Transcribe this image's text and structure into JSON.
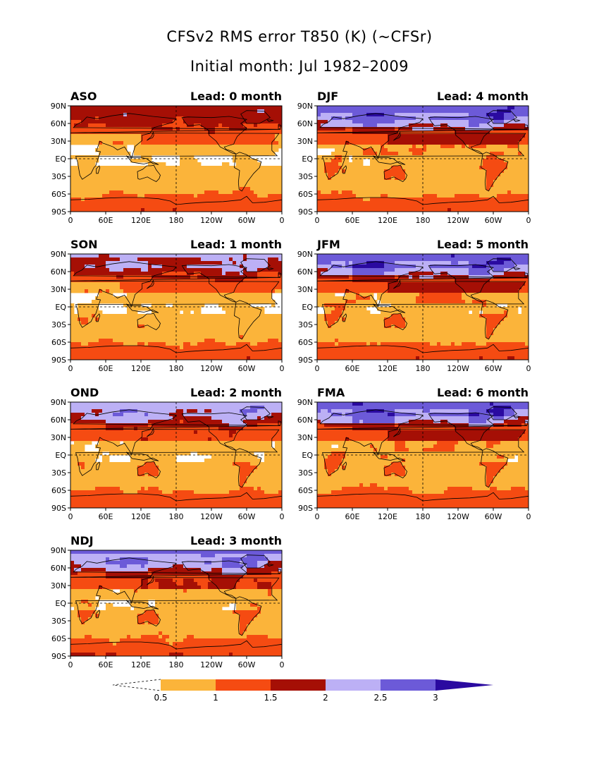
{
  "title": "CFSv2 RMS error T850 (K) (~CFSr)",
  "subtitle": "Initial month: Jul 1982–2009",
  "lat_labels": [
    "90N",
    "60N",
    "30N",
    "EQ",
    "30S",
    "60S",
    "90S"
  ],
  "lon_labels": [
    "0",
    "60E",
    "120E",
    "180",
    "120W",
    "60W",
    "0"
  ],
  "colors": {
    "bin_0_5_1": "#fbb43a",
    "bin_1_1_5": "#f54b12",
    "bin_1_5_2": "#a50f05",
    "bin_2_2_5": "#bcb0f5",
    "bin_2_5_3": "#6c5ad8",
    "bin_3_plus": "#2a0aa0",
    "below_0_5": "#ffffff",
    "land_outline": "#000000"
  },
  "colorbar": {
    "tick_labels": [
      "0.5",
      "1",
      "1.5",
      "2",
      "2.5",
      "3"
    ],
    "bins": [
      {
        "range": "0.5–1",
        "color": "#fbb43a"
      },
      {
        "range": "1–1.5",
        "color": "#f54b12"
      },
      {
        "range": "1.5–2",
        "color": "#a50f05"
      },
      {
        "range": "2–2.5",
        "color": "#bcb0f5"
      },
      {
        "range": "2.5–3",
        "color": "#6c5ad8"
      },
      {
        "range": ">3",
        "color": "#2a0aa0"
      }
    ]
  },
  "panels": [
    {
      "season": "ASO",
      "lead": "Lead: 0 month",
      "level": 1
    },
    {
      "season": "DJF",
      "lead": "Lead: 4 month",
      "level": 5
    },
    {
      "season": "SON",
      "lead": "Lead: 1 month",
      "level": 2
    },
    {
      "season": "JFM",
      "lead": "Lead: 5 month",
      "level": 5
    },
    {
      "season": "OND",
      "lead": "Lead: 2 month",
      "level": 3
    },
    {
      "season": "FMA",
      "lead": "Lead: 6 month",
      "level": 5
    },
    {
      "season": "NDJ",
      "lead": "Lead: 3 month",
      "level": 4
    }
  ]
}
